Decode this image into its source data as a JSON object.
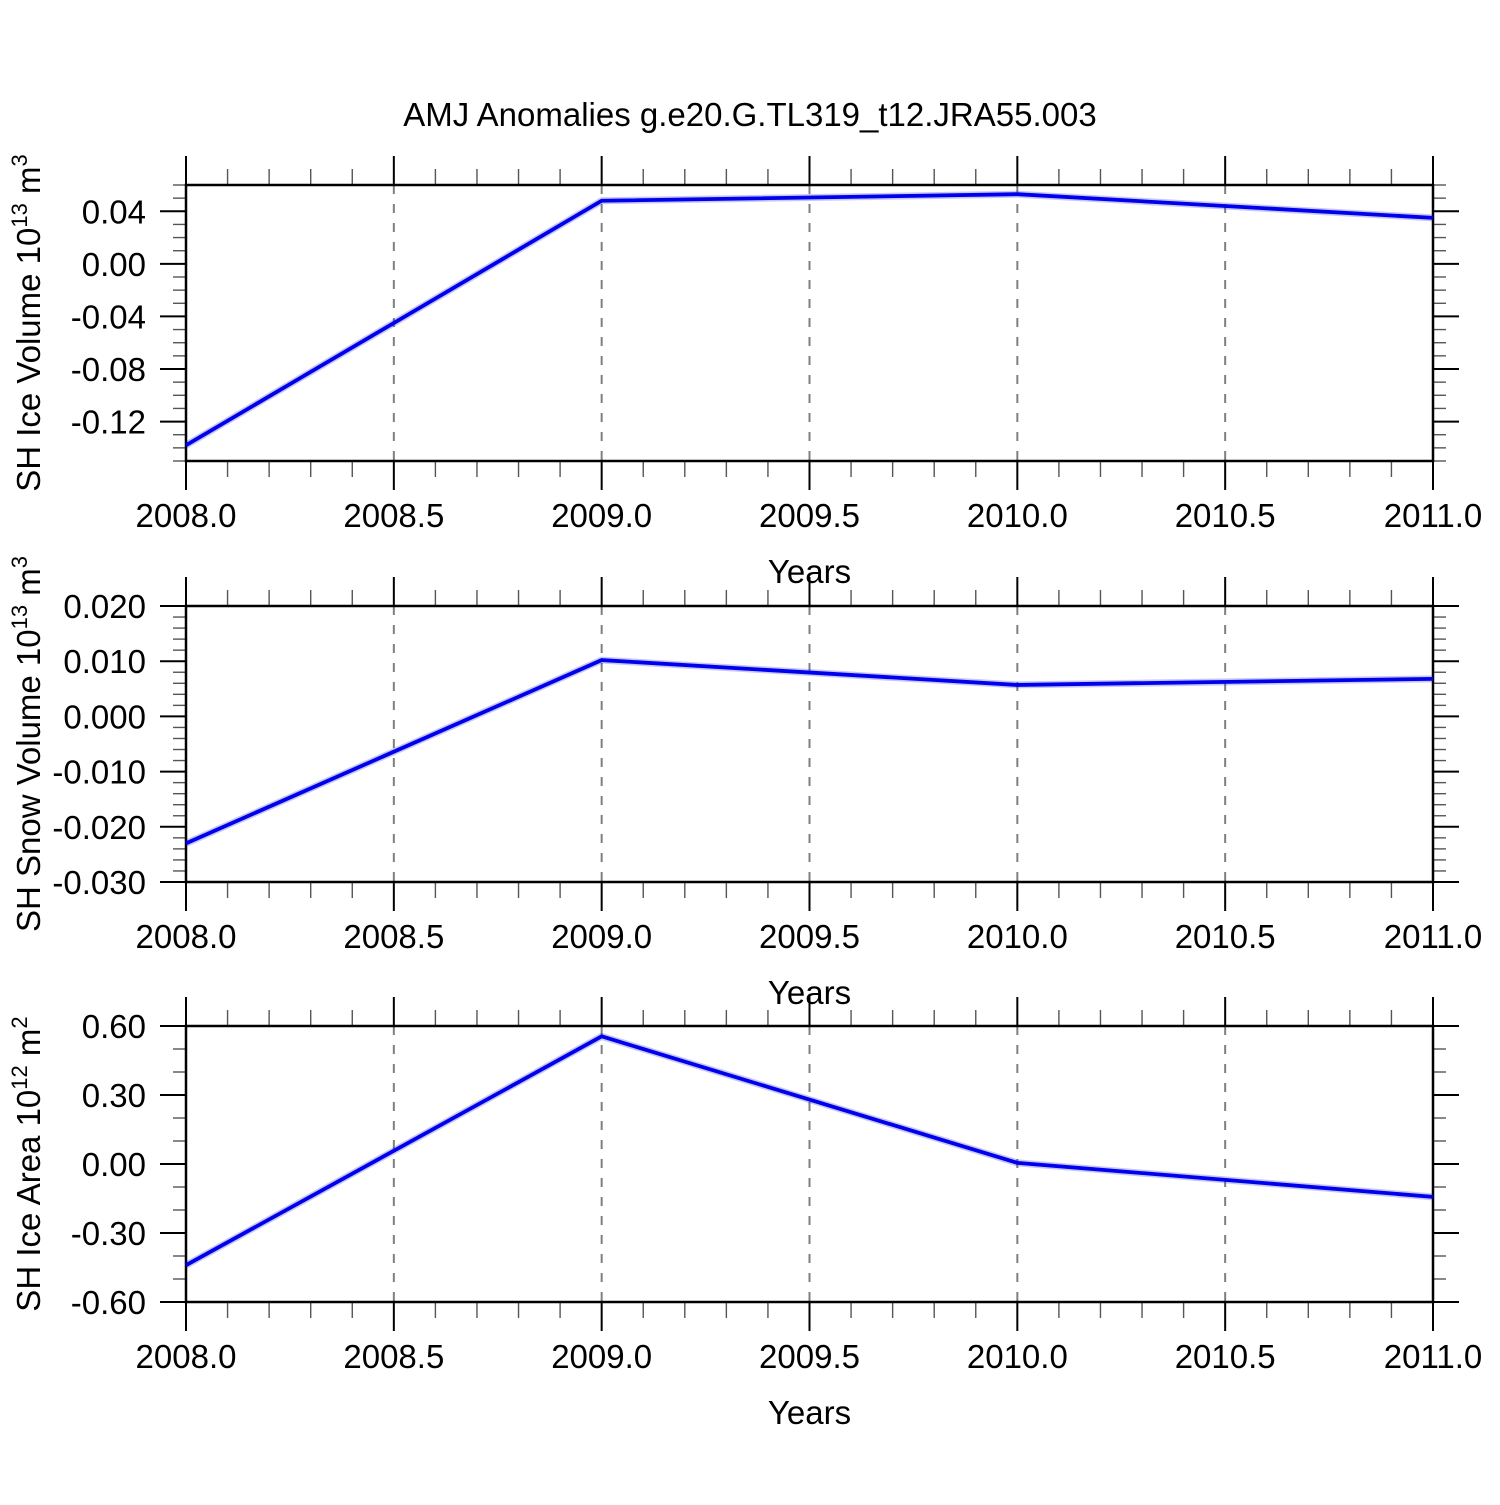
{
  "title": "AMJ Anomalies g.e20.G.TL319_t12.JRA55.003",
  "colors": {
    "line": "#0000EB",
    "line_halo": "#8FA8F0",
    "grid_dashed": "#7F7F7F",
    "axis": "#000000",
    "minor_tick": "#555555",
    "background": "#FFFFFF"
  },
  "chart_data": [
    {
      "type": "line",
      "panel": "sh-ice-volume",
      "ylabel": "SH Ice Volume 10^13 m^3",
      "ylabel_parts": [
        {
          "t": "SH Ice Volume 10"
        },
        {
          "t": "13",
          "sup": true
        },
        {
          "t": " m"
        },
        {
          "t": "3",
          "sup": true
        }
      ],
      "xlabel": "Years",
      "x": [
        2008.0,
        2009.0,
        2010.0,
        2011.0
      ],
      "values": [
        -0.138,
        0.048,
        0.053,
        0.035
      ],
      "xlim": [
        2008.0,
        2011.0
      ],
      "ylim": [
        -0.15,
        0.06
      ],
      "xticks": {
        "values": [
          2008.0,
          2008.5,
          2009.0,
          2009.5,
          2010.0,
          2010.5,
          2011.0
        ],
        "labels": [
          "2008.0",
          "2008.5",
          "2009.0",
          "2009.5",
          "2010.0",
          "2010.5",
          "2011.0"
        ]
      },
      "xtick_minor_step": 0.1,
      "yticks": {
        "values": [
          0.04,
          0.0,
          -0.04,
          -0.08,
          -0.12
        ],
        "labels": [
          "0.04",
          "0.00",
          "-0.04",
          "-0.08",
          "-0.12"
        ]
      },
      "ytick_minor_step": 0.01,
      "grid_x_dashed": [
        2008.5,
        2009.0,
        2009.5,
        2010.0,
        2010.5
      ],
      "legend": "none",
      "grid": "vertical-dashed-only"
    },
    {
      "type": "line",
      "panel": "sh-snow-volume",
      "ylabel": "SH Snow Volume 10^13 m^3",
      "ylabel_parts": [
        {
          "t": "SH Snow Volume 10"
        },
        {
          "t": "13",
          "sup": true
        },
        {
          "t": " m"
        },
        {
          "t": "3",
          "sup": true
        }
      ],
      "xlabel": "Years",
      "x": [
        2008.0,
        2009.0,
        2010.0,
        2011.0
      ],
      "values": [
        -0.023,
        0.0102,
        0.0057,
        0.0068
      ],
      "xlim": [
        2008.0,
        2011.0
      ],
      "ylim": [
        -0.03,
        0.02
      ],
      "xticks": {
        "values": [
          2008.0,
          2008.5,
          2009.0,
          2009.5,
          2010.0,
          2010.5,
          2011.0
        ],
        "labels": [
          "2008.0",
          "2008.5",
          "2009.0",
          "2009.5",
          "2010.0",
          "2010.5",
          "2011.0"
        ]
      },
      "xtick_minor_step": 0.1,
      "yticks": {
        "values": [
          0.02,
          0.01,
          0.0,
          -0.01,
          -0.02,
          -0.03
        ],
        "labels": [
          "0.020",
          "0.010",
          "0.000",
          "-0.010",
          "-0.020",
          "-0.030"
        ]
      },
      "ytick_minor_step": 0.002,
      "grid_x_dashed": [
        2008.5,
        2009.0,
        2009.5,
        2010.0,
        2010.5
      ],
      "legend": "none",
      "grid": "vertical-dashed-only"
    },
    {
      "type": "line",
      "panel": "sh-ice-area",
      "ylabel": "SH Ice Area 10^12 m^2",
      "ylabel_parts": [
        {
          "t": "SH Ice Area 10"
        },
        {
          "t": "12",
          "sup": true
        },
        {
          "t": " m"
        },
        {
          "t": "2",
          "sup": true
        }
      ],
      "xlabel": "Years",
      "x": [
        2008.0,
        2009.0,
        2010.0,
        2011.0
      ],
      "values": [
        -0.44,
        0.555,
        0.005,
        -0.143
      ],
      "xlim": [
        2008.0,
        2011.0
      ],
      "ylim": [
        -0.6,
        0.6
      ],
      "xticks": {
        "values": [
          2008.0,
          2008.5,
          2009.0,
          2009.5,
          2010.0,
          2010.5,
          2011.0
        ],
        "labels": [
          "2008.0",
          "2008.5",
          "2009.0",
          "2009.5",
          "2010.0",
          "2010.5",
          "2011.0"
        ]
      },
      "xtick_minor_step": 0.1,
      "yticks": {
        "values": [
          0.6,
          0.3,
          0.0,
          -0.3,
          -0.6
        ],
        "labels": [
          "0.60",
          "0.30",
          "0.00",
          "-0.30",
          "-0.60"
        ]
      },
      "ytick_minor_step": 0.1,
      "grid_x_dashed": [
        2008.5,
        2009.0,
        2009.5,
        2010.0,
        2010.5
      ],
      "legend": "none",
      "grid": "vertical-dashed-only"
    }
  ]
}
